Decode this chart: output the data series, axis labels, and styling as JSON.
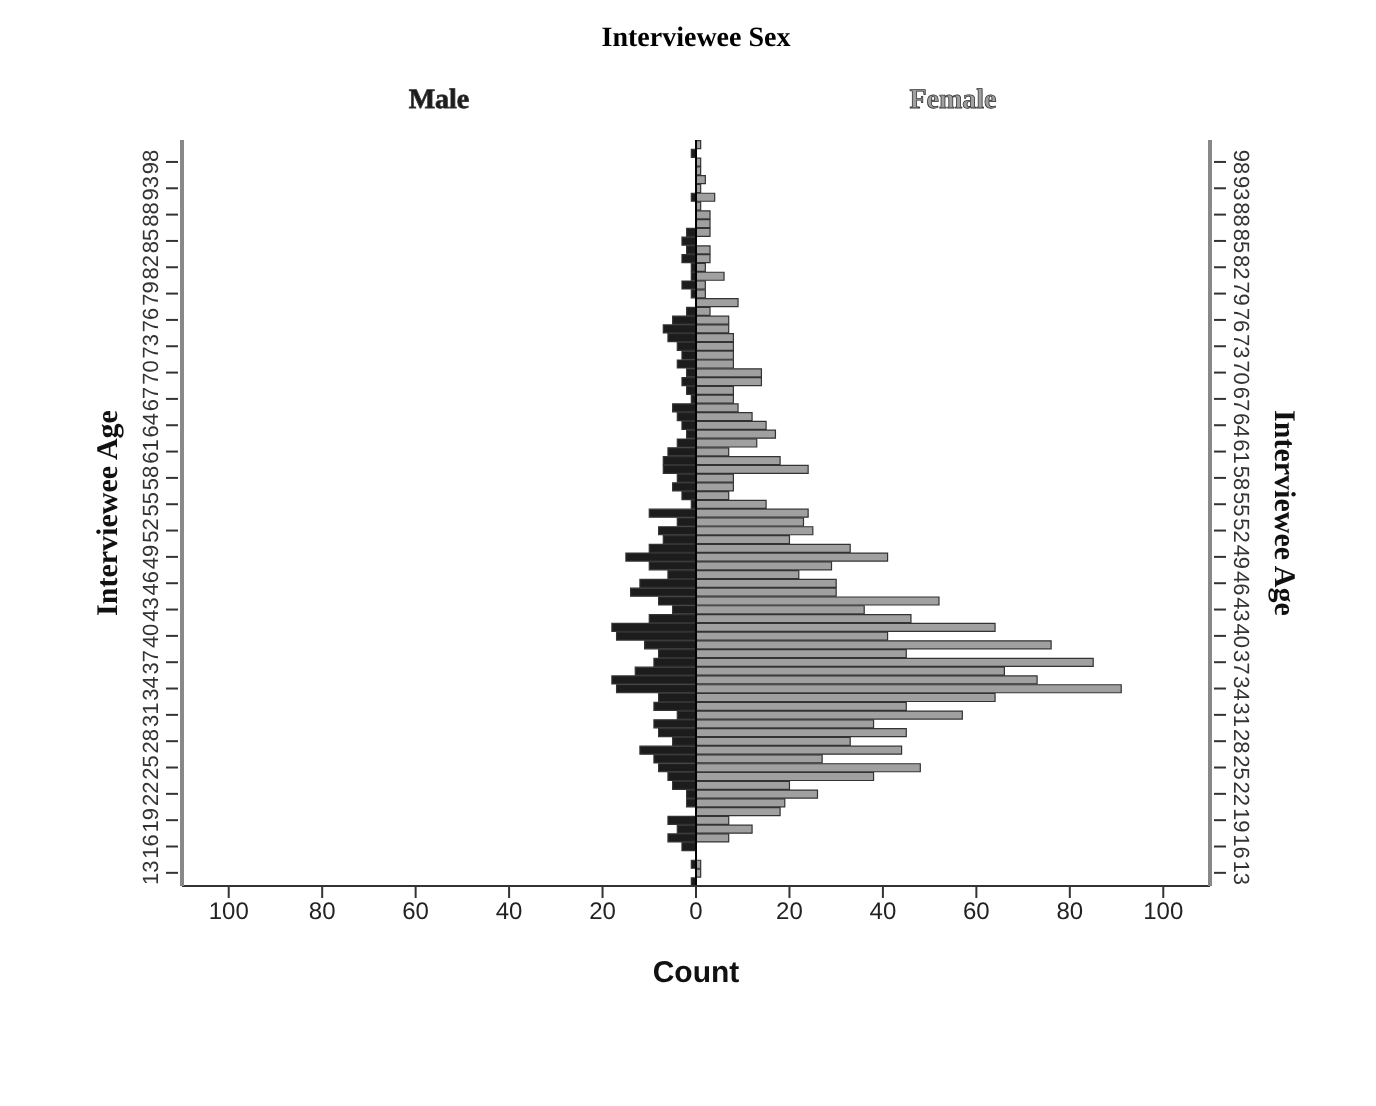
{
  "chart_data": {
    "type": "bar",
    "orientation": "horizontal",
    "stacked": true,
    "title": "Interviewee Sex",
    "xlabel": "Count",
    "ylabel": "Interviewee Age",
    "y2label": "Interviewee Age",
    "categories": [
      null,
      null,
      "98",
      null,
      null,
      "93",
      null,
      null,
      "88",
      null,
      null,
      "85",
      null,
      null,
      "82",
      null,
      null,
      "79",
      null,
      null,
      "76",
      null,
      null,
      "73",
      null,
      null,
      "70",
      null,
      null,
      "67",
      null,
      null,
      "64",
      null,
      null,
      "61",
      null,
      null,
      "58",
      null,
      null,
      "55",
      null,
      null,
      "52",
      null,
      null,
      "49",
      null,
      null,
      "46",
      null,
      null,
      "43",
      null,
      null,
      "40",
      null,
      null,
      "37",
      null,
      null,
      "34",
      null,
      null,
      "31",
      null,
      null,
      "28",
      null,
      null,
      "25",
      null,
      null,
      "22",
      null,
      null,
      "19",
      null,
      null,
      "16",
      null,
      null,
      "13",
      null
    ],
    "series": [
      {
        "name": "Male",
        "color": "#1c1c1c",
        "values": [
          0,
          -1,
          0,
          0,
          0,
          0,
          -1,
          0,
          0,
          0,
          -2,
          -3,
          -2,
          -3,
          -1,
          -1,
          -3,
          -1,
          0,
          -2,
          -5,
          -7,
          -6,
          -4,
          -3,
          -4,
          -2,
          -3,
          -2,
          -1,
          -5,
          -4,
          -3,
          -2,
          -4,
          -6,
          -7,
          -7,
          -4,
          -5,
          -3,
          -1,
          -10,
          -4,
          -8,
          -7,
          -10,
          -15,
          -10,
          -6,
          -12,
          -14,
          -8,
          -5,
          -10,
          -18,
          -17,
          -11,
          -8,
          -9,
          -13,
          -18,
          -17,
          -8,
          -9,
          -4,
          -9,
          -8,
          -5,
          -12,
          -9,
          -8,
          -6,
          -5,
          -2,
          -2,
          0,
          -6,
          -4,
          -6,
          -3,
          0,
          -1,
          0,
          -1
        ]
      },
      {
        "name": "Female",
        "color": "#a0a0a0",
        "values": [
          1,
          0,
          1,
          1,
          2,
          1,
          4,
          1,
          3,
          3,
          3,
          0,
          3,
          3,
          2,
          6,
          2,
          2,
          9,
          3,
          7,
          7,
          8,
          8,
          8,
          8,
          14,
          14,
          8,
          8,
          9,
          12,
          15,
          17,
          13,
          7,
          18,
          24,
          8,
          8,
          7,
          15,
          24,
          23,
          25,
          20,
          33,
          41,
          29,
          22,
          30,
          30,
          52,
          36,
          46,
          64,
          41,
          76,
          45,
          85,
          66,
          73,
          91,
          64,
          45,
          57,
          38,
          45,
          33,
          44,
          27,
          48,
          38,
          20,
          26,
          19,
          18,
          7,
          12,
          7,
          0,
          0,
          1,
          1,
          0
        ]
      }
    ],
    "xlim": [
      -110,
      110
    ],
    "xticks": [
      {
        "value": -100,
        "label": "100"
      },
      {
        "value": -80,
        "label": "80"
      },
      {
        "value": -60,
        "label": "60"
      },
      {
        "value": -40,
        "label": "40"
      },
      {
        "value": -20,
        "label": "20"
      },
      0,
      20,
      40,
      60,
      80,
      100
    ]
  }
}
